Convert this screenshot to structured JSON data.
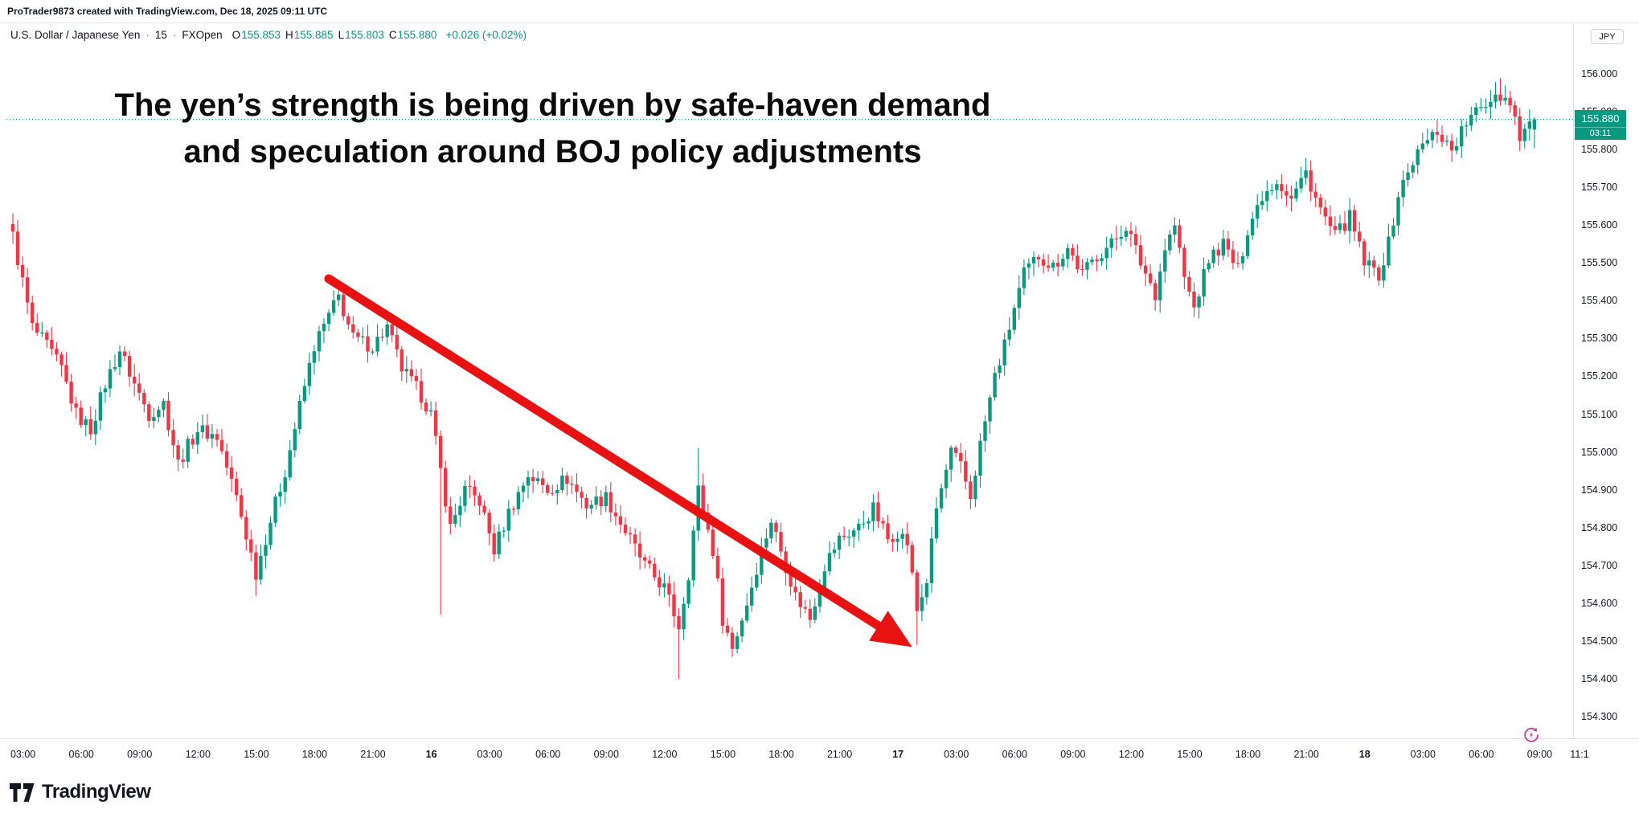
{
  "watermark": "ProTrader9873 created with TradingView.com, Dec 18, 2025 09:11 UTC",
  "header": {
    "symbol": "U.S. Dollar / Japanese Yen",
    "sep": "·",
    "interval": "15",
    "exchange": "FXOpen",
    "ohlc": {
      "o_label": "O",
      "o": "155.853",
      "h_label": "H",
      "h": "155.885",
      "l_label": "L",
      "l": "155.803",
      "c_label": "C",
      "c": "155.880",
      "change": "+0.026 (+0.02%)"
    }
  },
  "annotation": {
    "line1": "The yen’s strength is being driven by safe-haven demand",
    "line2": "and speculation around BOJ policy adjustments"
  },
  "price_axis": {
    "currency_label": "JPY",
    "ticks": [
      "156.000",
      "155.900",
      "155.800",
      "155.700",
      "155.600",
      "155.500",
      "155.400",
      "155.300",
      "155.200",
      "155.100",
      "155.000",
      "154.900",
      "154.800",
      "154.700",
      "154.600",
      "154.500",
      "154.400",
      "154.300"
    ],
    "last_price": "155.880",
    "countdown": "03:11"
  },
  "time_axis": {
    "labels": [
      {
        "text": "03:00"
      },
      {
        "text": "06:00"
      },
      {
        "text": "09:00"
      },
      {
        "text": "12:00"
      },
      {
        "text": "15:00"
      },
      {
        "text": "18:00"
      },
      {
        "text": "21:00"
      },
      {
        "text": "16",
        "bold": true
      },
      {
        "text": "03:00"
      },
      {
        "text": "06:00"
      },
      {
        "text": "09:00"
      },
      {
        "text": "12:00"
      },
      {
        "text": "15:00"
      },
      {
        "text": "18:00"
      },
      {
        "text": "21:00"
      },
      {
        "text": "17",
        "bold": true
      },
      {
        "text": "03:00"
      },
      {
        "text": "06:00"
      },
      {
        "text": "09:00"
      },
      {
        "text": "12:00"
      },
      {
        "text": "15:00"
      },
      {
        "text": "18:00"
      },
      {
        "text": "21:00"
      },
      {
        "text": "18",
        "bold": true
      },
      {
        "text": "03:00"
      },
      {
        "text": "06:00"
      },
      {
        "text": "09:00"
      },
      {
        "text": "11:1",
        "x": 1965
      }
    ]
  },
  "footer": {
    "logo_text": "TradingView"
  },
  "colors": {
    "up": "#089981",
    "down": "#f23645",
    "arrow": "#e81212",
    "last_price_bg": "#089981",
    "dotted_line": "#089981",
    "icon_magenta": "#cf3a9b"
  },
  "chart_data": {
    "type": "candlestick",
    "title": "U.S. Dollar / Japanese Yen, 15m, FXOpen",
    "ylabel": "JPY",
    "ylim": [
      154.3,
      156.0
    ],
    "interval_minutes": 15,
    "num_candles": 314,
    "last_candle": {
      "o": 155.853,
      "h": 155.885,
      "l": 155.803,
      "c": 155.88
    },
    "y_tick_labels": [
      "156.000",
      "155.900",
      "155.800",
      "155.700",
      "155.600",
      "155.500",
      "155.400",
      "155.300",
      "155.200",
      "155.100",
      "155.000",
      "154.900",
      "154.800",
      "154.700",
      "154.600",
      "154.500",
      "154.400",
      "154.300"
    ],
    "x_tick_labels": [
      "03:00",
      "06:00",
      "09:00",
      "12:00",
      "15:00",
      "18:00",
      "21:00",
      "16",
      "03:00",
      "06:00",
      "09:00",
      "12:00",
      "15:00",
      "18:00",
      "21:00",
      "17",
      "03:00",
      "06:00",
      "09:00",
      "12:00",
      "15:00",
      "18:00",
      "21:00",
      "18",
      "03:00",
      "06:00",
      "09:00",
      "11:1"
    ],
    "waypoints": [
      [
        0,
        155.57
      ],
      [
        2,
        155.45
      ],
      [
        4,
        155.33
      ],
      [
        7,
        155.28
      ],
      [
        10,
        155.22
      ],
      [
        13,
        155.1
      ],
      [
        16,
        155.06
      ],
      [
        19,
        155.18
      ],
      [
        22,
        155.27
      ],
      [
        25,
        155.18
      ],
      [
        28,
        155.1
      ],
      [
        31,
        155.13
      ],
      [
        34,
        154.97
      ],
      [
        38,
        155.06
      ],
      [
        42,
        155.04
      ],
      [
        46,
        154.88
      ],
      [
        50,
        154.68
      ],
      [
        53,
        154.82
      ],
      [
        56,
        154.95
      ],
      [
        59,
        155.12
      ],
      [
        62,
        155.28
      ],
      [
        65,
        155.36
      ],
      [
        67,
        155.41
      ],
      [
        70,
        155.3
      ],
      [
        74,
        155.28
      ],
      [
        77,
        155.33
      ],
      [
        80,
        155.22
      ],
      [
        84,
        155.15
      ],
      [
        86,
        155.1
      ],
      [
        88,
        154.95
      ],
      [
        90,
        154.8
      ],
      [
        93,
        154.9
      ],
      [
        96,
        154.87
      ],
      [
        99,
        154.74
      ],
      [
        102,
        154.84
      ],
      [
        106,
        154.94
      ],
      [
        110,
        154.9
      ],
      [
        114,
        154.93
      ],
      [
        118,
        154.86
      ],
      [
        122,
        154.88
      ],
      [
        126,
        154.79
      ],
      [
        130,
        154.7
      ],
      [
        134,
        154.64
      ],
      [
        137,
        154.54
      ],
      [
        139,
        154.68
      ],
      [
        141,
        154.9
      ],
      [
        144,
        154.74
      ],
      [
        146,
        154.56
      ],
      [
        148,
        154.48
      ],
      [
        151,
        154.6
      ],
      [
        154,
        154.74
      ],
      [
        156,
        154.82
      ],
      [
        158,
        154.74
      ],
      [
        161,
        154.62
      ],
      [
        164,
        154.56
      ],
      [
        167,
        154.7
      ],
      [
        170,
        154.77
      ],
      [
        174,
        154.8
      ],
      [
        177,
        154.85
      ],
      [
        180,
        154.77
      ],
      [
        182,
        154.79
      ],
      [
        184,
        154.76
      ],
      [
        186,
        154.58
      ],
      [
        188,
        154.66
      ],
      [
        190,
        154.85
      ],
      [
        193,
        155.0
      ],
      [
        195,
        154.96
      ],
      [
        197,
        154.88
      ],
      [
        199,
        155.02
      ],
      [
        202,
        155.2
      ],
      [
        204,
        155.28
      ],
      [
        206,
        155.38
      ],
      [
        208,
        155.47
      ],
      [
        211,
        155.52
      ],
      [
        214,
        155.49
      ],
      [
        217,
        155.54
      ],
      [
        220,
        155.47
      ],
      [
        223,
        155.52
      ],
      [
        226,
        155.55
      ],
      [
        229,
        155.6
      ],
      [
        232,
        155.5
      ],
      [
        235,
        155.42
      ],
      [
        237,
        155.54
      ],
      [
        239,
        155.6
      ],
      [
        241,
        155.46
      ],
      [
        243,
        155.38
      ],
      [
        246,
        155.51
      ],
      [
        249,
        155.55
      ],
      [
        252,
        155.48
      ],
      [
        254,
        155.59
      ],
      [
        257,
        155.68
      ],
      [
        260,
        155.72
      ],
      [
        263,
        155.67
      ],
      [
        266,
        155.74
      ],
      [
        269,
        155.64
      ],
      [
        272,
        155.57
      ],
      [
        275,
        155.62
      ],
      [
        278,
        155.5
      ],
      [
        281,
        155.47
      ],
      [
        283,
        155.55
      ],
      [
        285,
        155.68
      ],
      [
        288,
        155.77
      ],
      [
        290,
        155.81
      ],
      [
        293,
        155.85
      ],
      [
        296,
        155.8
      ],
      [
        299,
        155.87
      ],
      [
        302,
        155.91
      ],
      [
        305,
        155.95
      ],
      [
        308,
        155.93
      ],
      [
        310,
        155.84
      ],
      [
        313,
        155.88
      ]
    ],
    "long_wicks": [
      {
        "i": 50,
        "low": 154.62
      },
      {
        "i": 88,
        "low": 154.57
      },
      {
        "i": 137,
        "low": 154.4
      },
      {
        "i": 141,
        "high": 155.01
      },
      {
        "i": 186,
        "low": 154.49
      },
      {
        "i": 306,
        "high": 155.99
      }
    ],
    "annotations": {
      "text": "The yen’s strength is being driven by safe-haven demand and speculation around BOJ policy adjustments",
      "arrow": {
        "direction": "down-right",
        "start_price": 155.4,
        "end_price": 154.48
      }
    },
    "legend_position": "none",
    "grid": false
  }
}
